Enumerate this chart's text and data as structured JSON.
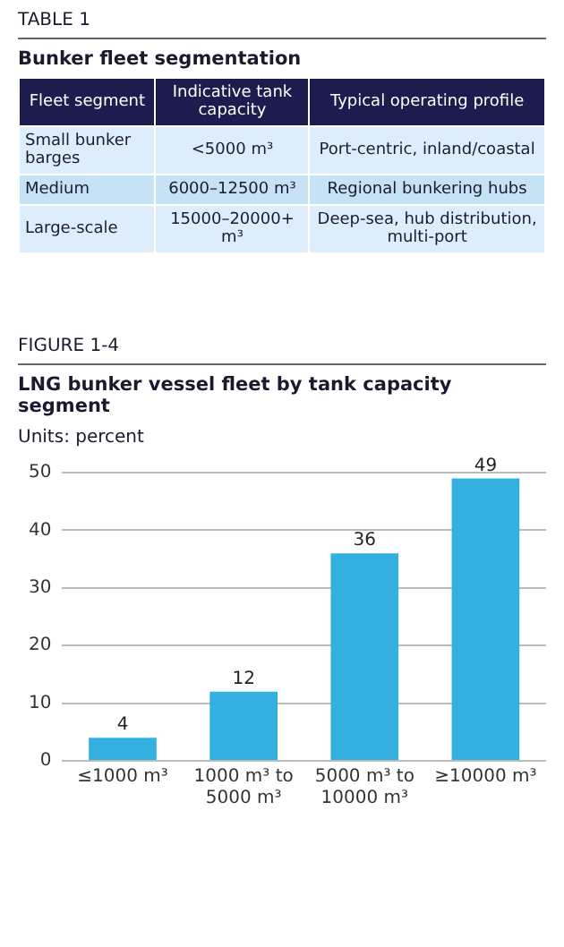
{
  "chart_data": [
    {
      "type": "other",
      "subtitle": "TABLE 1",
      "title": "Bunker fleet segmentation",
      "categories": [
        "Fleet segment",
        "Indicative tank capacity",
        "Typical operating profile"
      ],
      "y_categories": [
        "Small bunker barges",
        "Medium",
        "Large-scale"
      ],
      "cell_labels": [
        [
          "<5000 m³",
          "Port-centric, inland/coastal"
        ],
        [
          "6000–12500 m³",
          "Regional bunkering hubs"
        ],
        [
          "15000–20000+ m³",
          "Deep-sea, hub distribution, multi-port"
        ]
      ]
    },
    {
      "type": "bar",
      "subtitle": "FIGURE 1-4",
      "title": "LNG bunker vessel fleet by tank capacity segment",
      "ylabel": "Units: percent",
      "categories": [
        "≤1000 m³",
        "1000 m³ to 5000 m³",
        "5000 m³ to 10000 m³",
        "≥10000 m³"
      ],
      "values": [
        4,
        12,
        36,
        49
      ],
      "color": "#33b0e0",
      "ylim": [
        0,
        50
      ],
      "yticks": [
        0,
        10,
        20,
        30,
        40,
        50
      ],
      "grid": "y",
      "legend": false,
      "data_labels": true
    }
  ]
}
